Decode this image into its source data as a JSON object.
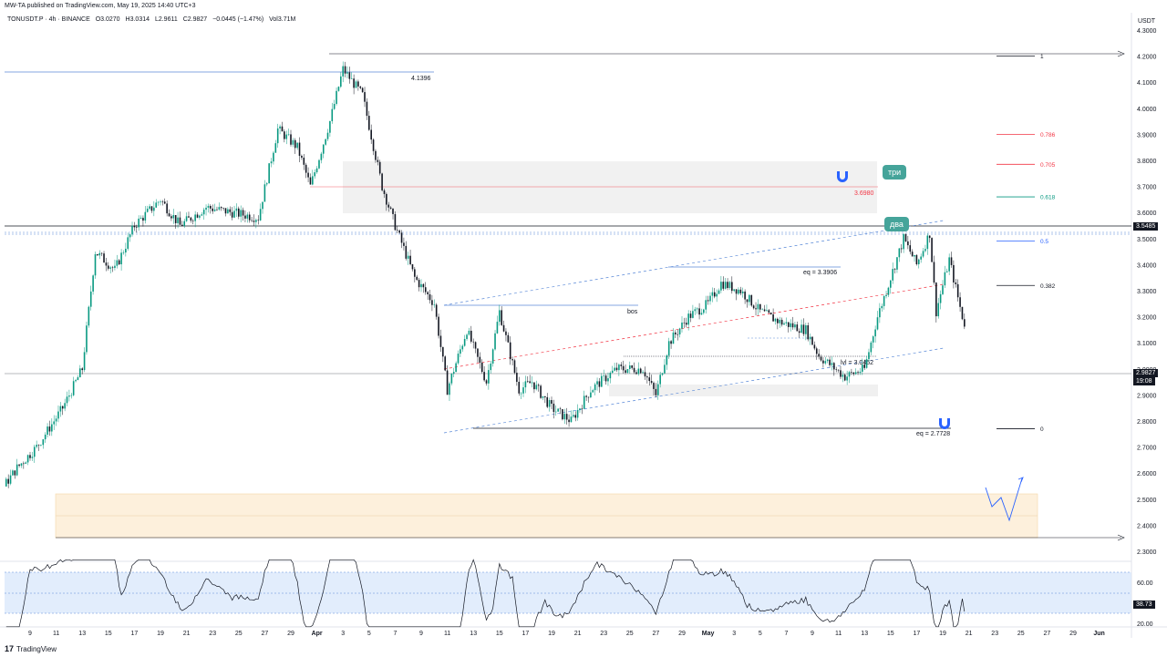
{
  "header": {
    "published": "MW-TA published on TradingView.com, May 19, 2025 14:40 UTC+3"
  },
  "symbol_bar": {
    "symbol": "TONUSDT.P · 4h · BINANCE",
    "open": "O3.0270",
    "high": "H3.0314",
    "low": "L2.9611",
    "close": "C2.9827",
    "change": "−0.0445 (−1.47%)",
    "volume": "Vol3.71M"
  },
  "axis": {
    "currency": "USDT",
    "price_labels": [
      "4.3000",
      "4.2000",
      "4.1000",
      "4.0000",
      "3.9000",
      "3.8000",
      "3.7000",
      "3.6000",
      "3.5000",
      "3.4000",
      "3.3000",
      "3.2000",
      "3.1000",
      "3.0000",
      "2.9000",
      "2.8000",
      "2.7000",
      "2.6000",
      "2.5000",
      "2.4000",
      "2.3000"
    ],
    "date_labels": [
      "9",
      "11",
      "13",
      "15",
      "17",
      "19",
      "21",
      "23",
      "25",
      "27",
      "29",
      "Apr",
      "3",
      "5",
      "7",
      "9",
      "11",
      "13",
      "15",
      "17",
      "19",
      "21",
      "23",
      "25",
      "27",
      "29",
      "May",
      "3",
      "5",
      "7",
      "9",
      "11",
      "13",
      "15",
      "17",
      "19",
      "21",
      "23",
      "25",
      "27",
      "29",
      "Jun"
    ],
    "rsi_labels": [
      "60.00",
      "20.00"
    ],
    "last_price": "2.9827",
    "countdown": "19:08",
    "level_price": "3.5485",
    "rsi_value": "38.73"
  },
  "annotations": {
    "high_label": "4.1396",
    "fib_3698": "3.6980",
    "eq_top": "eq = 3.3906",
    "bos": "bos",
    "lvl": "lvl = 3.0452",
    "eq_bottom": "eq = 2.7728",
    "bubble_tri": "три",
    "bubble_dva": "два"
  },
  "fib_levels": [
    {
      "label": "1",
      "price": 4.2,
      "color": "#131722"
    },
    {
      "label": "0.786",
      "price": 3.9,
      "color": "#f23645"
    },
    {
      "label": "0.705",
      "price": 3.785,
      "color": "#f23645"
    },
    {
      "label": "0.618",
      "price": 3.66,
      "color": "#089981"
    },
    {
      "label": "0.5",
      "price": 3.49,
      "color": "#2962ff"
    },
    {
      "label": "0.382",
      "price": 3.32,
      "color": "#131722"
    },
    {
      "label": "0",
      "price": 2.77,
      "color": "#131722"
    }
  ],
  "footer": {
    "brand": "TradingView",
    "logo_mark": "17"
  },
  "chart_data": {
    "type": "candlestick",
    "symbol": "TONUSDT.P",
    "timeframe": "4h",
    "ylim": [
      2.25,
      4.33
    ],
    "x_range": [
      "Mar 8, 2025",
      "Jun 1, 2025"
    ],
    "path_points": [
      {
        "d": 0,
        "p": 3.0
      },
      {
        "d": 1.5,
        "p": 3.05
      },
      {
        "d": 3,
        "p": 2.95
      },
      {
        "d": 4.5,
        "p": 2.85
      },
      {
        "d": 5.5,
        "p": 2.55
      },
      {
        "d": 6.5,
        "p": 2.62
      },
      {
        "d": 8,
        "p": 2.7
      },
      {
        "d": 10,
        "p": 2.85
      },
      {
        "d": 11.5,
        "p": 3.0
      },
      {
        "d": 12.5,
        "p": 3.45
      },
      {
        "d": 14,
        "p": 3.38
      },
      {
        "d": 15.5,
        "p": 3.55
      },
      {
        "d": 17.5,
        "p": 3.65
      },
      {
        "d": 19,
        "p": 3.55
      },
      {
        "d": 21,
        "p": 3.62
      },
      {
        "d": 23,
        "p": 3.6
      },
      {
        "d": 25,
        "p": 3.58
      },
      {
        "d": 26.5,
        "p": 3.92
      },
      {
        "d": 28,
        "p": 3.85
      },
      {
        "d": 29,
        "p": 3.7
      },
      {
        "d": 30.5,
        "p": 3.95
      },
      {
        "d": 31.5,
        "p": 4.15
      },
      {
        "d": 33,
        "p": 4.05
      },
      {
        "d": 34.5,
        "p": 3.7
      },
      {
        "d": 35.5,
        "p": 3.55
      },
      {
        "d": 37,
        "p": 3.35
      },
      {
        "d": 38.5,
        "p": 3.25
      },
      {
        "d": 39.5,
        "p": 2.92
      },
      {
        "d": 41,
        "p": 3.15
      },
      {
        "d": 42.5,
        "p": 2.95
      },
      {
        "d": 43.5,
        "p": 3.22
      },
      {
        "d": 45,
        "p": 2.92
      },
      {
        "d": 46,
        "p": 2.95
      },
      {
        "d": 47.5,
        "p": 2.85
      },
      {
        "d": 49,
        "p": 2.8
      },
      {
        "d": 50.5,
        "p": 2.92
      },
      {
        "d": 52.5,
        "p": 3.0
      },
      {
        "d": 54.5,
        "p": 3.0
      },
      {
        "d": 55.5,
        "p": 2.9
      },
      {
        "d": 56.5,
        "p": 3.1
      },
      {
        "d": 58,
        "p": 3.2
      },
      {
        "d": 59.5,
        "p": 3.25
      },
      {
        "d": 60.5,
        "p": 3.33
      },
      {
        "d": 62,
        "p": 3.3
      },
      {
        "d": 63.5,
        "p": 3.22
      },
      {
        "d": 65,
        "p": 3.18
      },
      {
        "d": 67,
        "p": 3.15
      },
      {
        "d": 68,
        "p": 3.05
      },
      {
        "d": 70,
        "p": 2.97
      },
      {
        "d": 71.5,
        "p": 3.0
      },
      {
        "d": 72.5,
        "p": 3.2
      },
      {
        "d": 73.5,
        "p": 3.35
      },
      {
        "d": 74.5,
        "p": 3.5
      },
      {
        "d": 75.5,
        "p": 3.4
      },
      {
        "d": 76.5,
        "p": 3.52
      },
      {
        "d": 77,
        "p": 3.22
      },
      {
        "d": 78,
        "p": 3.42
      },
      {
        "d": 79,
        "p": 3.2
      },
      {
        "d": 80,
        "p": 3.05
      },
      {
        "d": 81,
        "p": 3.1
      },
      {
        "d": 82,
        "p": 3.05
      },
      {
        "d": 83,
        "p": 3.12
      },
      {
        "d": 83.6,
        "p": 2.98
      }
    ]
  }
}
